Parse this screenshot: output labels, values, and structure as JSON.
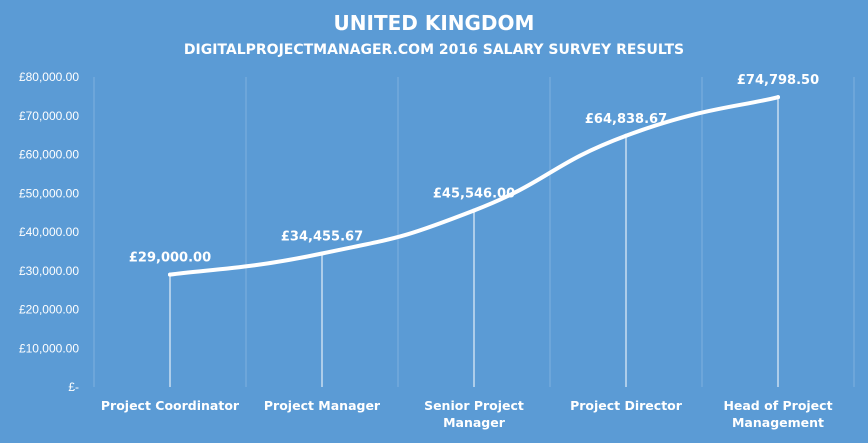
{
  "chart_data": {
    "type": "line",
    "title": "UNITED KINGDOM",
    "subtitle": "DIGITALPROJECTMANAGER.COM 2016 SALARY SURVEY RESULTS",
    "categories": [
      [
        "Project Coordinator"
      ],
      [
        "Project Manager"
      ],
      [
        "Senior Project",
        "Manager"
      ],
      [
        "Project Director"
      ],
      [
        "Head of Project",
        "Management"
      ]
    ],
    "series": [
      {
        "values": [
          29000.0,
          34455.67,
          45546.0,
          64838.67,
          74798.5
        ]
      }
    ],
    "data_labels": [
      "£29,000.00",
      "£34,455.67",
      "£45,546.00",
      "£64,838.67",
      "£74,798.50"
    ],
    "ylim": [
      0,
      80000
    ],
    "y_ticks": [
      {
        "value": 0,
        "label": "£-"
      },
      {
        "value": 10000,
        "label": "£10,000.00"
      },
      {
        "value": 20000,
        "label": "£20,000.00"
      },
      {
        "value": 30000,
        "label": "£30,000.00"
      },
      {
        "value": 40000,
        "label": "£40,000.00"
      },
      {
        "value": 50000,
        "label": "£50,000.00"
      },
      {
        "value": 60000,
        "label": "£60,000.00"
      },
      {
        "value": 70000,
        "label": "£70,000.00"
      },
      {
        "value": 80000,
        "label": "£80,000.00"
      }
    ],
    "grid": {
      "horizontal": false,
      "vertical": true
    },
    "drop_lines": true,
    "legend": "none",
    "colors": {
      "background": "#5b9bd5",
      "line": "#ffffff",
      "text": "#ffffff",
      "grid": "#7fb1df"
    }
  }
}
